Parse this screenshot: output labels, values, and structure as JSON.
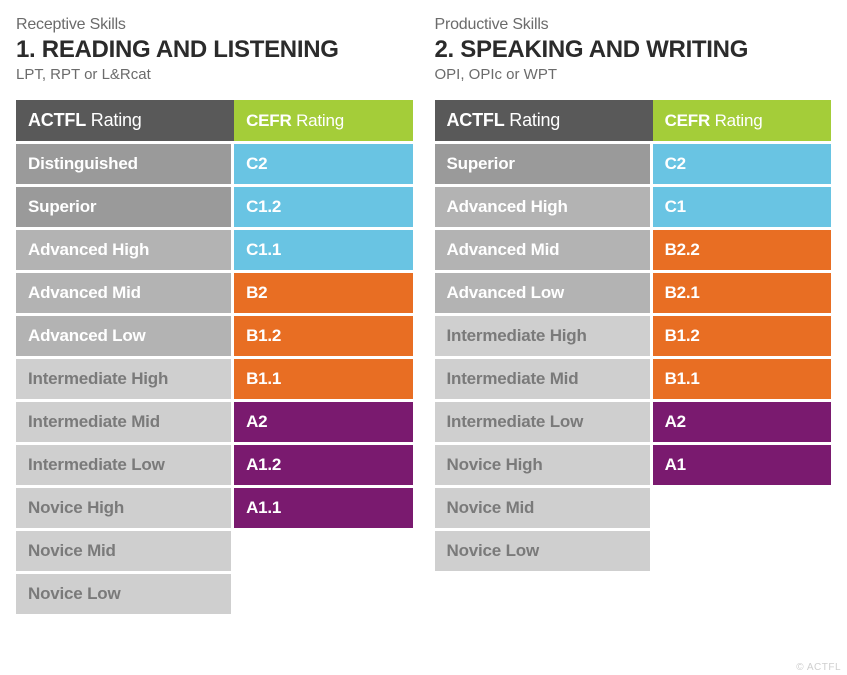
{
  "colors": {
    "actfl_header": "#595959",
    "cefr_header": "#a4cd39",
    "gray_dark": "#9a9a9a",
    "gray_mid": "#b3b3b3",
    "gray_light": "#cfcfcf",
    "blue": "#69c4e3",
    "orange": "#e86e23",
    "purple": "#7a1a6f",
    "white": "#ffffff",
    "text_gray": "#7a7a7a"
  },
  "watermark": "© ACTFL",
  "panels": [
    {
      "eyebrow": "Receptive Skills",
      "heading": "1. READING AND LISTENING",
      "subheading": "LPT, RPT or L&Rcat",
      "header": {
        "actfl_bold": "ACTFL",
        "actfl_light": " Rating",
        "cefr_bold": "CEFR",
        "cefr_light": " Rating"
      },
      "rows": [
        {
          "actfl": "Distinguished",
          "actfl_bg": "gray_dark",
          "cefr": "C2",
          "cefr_bg": "blue"
        },
        {
          "actfl": "Superior",
          "actfl_bg": "gray_dark",
          "cefr": "C1.2",
          "cefr_bg": "blue"
        },
        {
          "actfl": "Advanced High",
          "actfl_bg": "gray_mid",
          "cefr": "C1.1",
          "cefr_bg": "blue"
        },
        {
          "actfl": "Advanced Mid",
          "actfl_bg": "gray_mid",
          "cefr": "B2",
          "cefr_bg": "orange"
        },
        {
          "actfl": "Advanced Low",
          "actfl_bg": "gray_mid",
          "cefr": "B1.2",
          "cefr_bg": "orange"
        },
        {
          "actfl": "Intermediate High",
          "actfl_bg": "gray_light",
          "actfl_text_gray": true,
          "cefr": "B1.1",
          "cefr_bg": "orange"
        },
        {
          "actfl": "Intermediate Mid",
          "actfl_bg": "gray_light",
          "actfl_text_gray": true,
          "cefr": "A2",
          "cefr_bg": "purple"
        },
        {
          "actfl": "Intermediate Low",
          "actfl_bg": "gray_light",
          "actfl_text_gray": true,
          "cefr": "A1.2",
          "cefr_bg": "purple"
        },
        {
          "actfl": "Novice High",
          "actfl_bg": "gray_light",
          "actfl_text_gray": true,
          "cefr": "A1.1",
          "cefr_bg": "purple"
        },
        {
          "actfl": "Novice Mid",
          "actfl_bg": "gray_light",
          "actfl_text_gray": true,
          "cefr": "",
          "cefr_bg": "white"
        },
        {
          "actfl": "Novice Low",
          "actfl_bg": "gray_light",
          "actfl_text_gray": true,
          "cefr": "",
          "cefr_bg": "white"
        }
      ]
    },
    {
      "eyebrow": "Productive Skills",
      "heading": "2. SPEAKING AND WRITING",
      "subheading": "OPI, OPIc or WPT",
      "header": {
        "actfl_bold": "ACTFL",
        "actfl_light": " Rating",
        "cefr_bold": "CEFR",
        "cefr_light": " Rating"
      },
      "rows": [
        {
          "actfl": "Superior",
          "actfl_bg": "gray_dark",
          "cefr": "C2",
          "cefr_bg": "blue"
        },
        {
          "actfl": "Advanced High",
          "actfl_bg": "gray_mid",
          "cefr": "C1",
          "cefr_bg": "blue"
        },
        {
          "actfl": "Advanced Mid",
          "actfl_bg": "gray_mid",
          "cefr": "B2.2",
          "cefr_bg": "orange"
        },
        {
          "actfl": "Advanced Low",
          "actfl_bg": "gray_mid",
          "cefr": "B2.1",
          "cefr_bg": "orange"
        },
        {
          "actfl": "Intermediate High",
          "actfl_bg": "gray_light",
          "actfl_text_gray": true,
          "cefr": "B1.2",
          "cefr_bg": "orange"
        },
        {
          "actfl": "Intermediate Mid",
          "actfl_bg": "gray_light",
          "actfl_text_gray": true,
          "cefr": "B1.1",
          "cefr_bg": "orange"
        },
        {
          "actfl": "Intermediate Low",
          "actfl_bg": "gray_light",
          "actfl_text_gray": true,
          "cefr": "A2",
          "cefr_bg": "purple"
        },
        {
          "actfl": "Novice High",
          "actfl_bg": "gray_light",
          "actfl_text_gray": true,
          "cefr": "A1",
          "cefr_bg": "purple"
        },
        {
          "actfl": "Novice Mid",
          "actfl_bg": "gray_light",
          "actfl_text_gray": true,
          "cefr": "",
          "cefr_bg": "white"
        },
        {
          "actfl": "Novice Low",
          "actfl_bg": "gray_light",
          "actfl_text_gray": true,
          "cefr": "",
          "cefr_bg": "white"
        }
      ]
    }
  ]
}
